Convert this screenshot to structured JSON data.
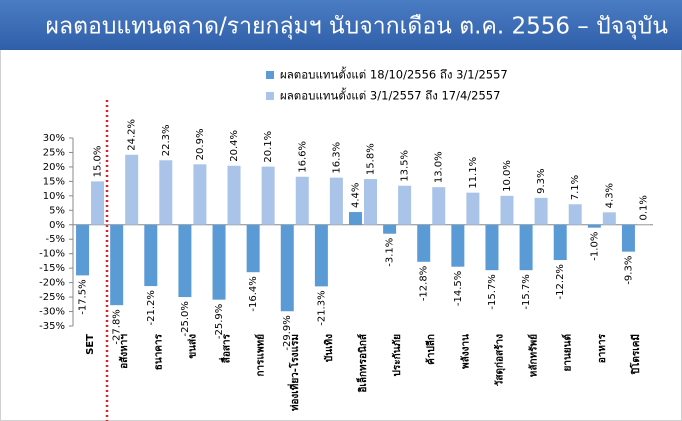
{
  "chart_data": {
    "type": "bar",
    "title": "ผลตอบแทนตลาด/รายกลุ่มฯ นับจากเดือน ต.ค. 2556 – ปัจจุบัน",
    "categories": [
      "SET",
      "อสังหาฯ",
      "ธนาคาร",
      "ขนส่ง",
      "สื่อสาร",
      "การแพทย์",
      "ท่องเที่ยว-โรงแรม",
      "บันเทิง",
      "อิเล็กทรอนิกส์",
      "ประกันภัย",
      "ค้าปลีก",
      "พลังงาน",
      "วัสดุก่อสร้าง",
      "หลักทรัพย์",
      "ยานยนต์",
      "อาหาร",
      "ปิโตรเคมี"
    ],
    "series": [
      {
        "name": "ผลตอบแทนตั้งแต่ 18/10/2556 ถึง 3/1/2557",
        "color": "#5b9bd5",
        "values": [
          -17.5,
          -27.8,
          -21.2,
          -25.0,
          -25.9,
          -16.4,
          -29.9,
          -21.3,
          4.4,
          -3.1,
          -12.8,
          -14.5,
          -15.7,
          -15.7,
          -12.2,
          -1.0,
          -9.3
        ],
        "value_labels": [
          "-17.5%",
          "-27.8%",
          "-21.2%",
          "-25.0%",
          "-25.9%",
          "-16.4%",
          "-29.9%",
          "-21.3%",
          "4.4%",
          "-3.1%",
          "-12.8%",
          "-14.5%",
          "-15.7%",
          "-15.7%",
          "-12.2%",
          "-1.0%",
          "-9.3%"
        ]
      },
      {
        "name": "ผลตอบแทนตั้งแต่ 3/1/2557 ถึง 17/4/2557",
        "color": "#a9c4e8",
        "values": [
          15.0,
          24.2,
          22.3,
          20.9,
          20.4,
          20.1,
          16.6,
          16.3,
          15.8,
          13.5,
          13.0,
          11.1,
          10.0,
          9.3,
          7.1,
          4.3,
          0.1
        ],
        "value_labels": [
          "15.0%",
          "24.2%",
          "22.3%",
          "20.9%",
          "20.4%",
          "20.1%",
          "16.6%",
          "16.3%",
          "15.8%",
          "13.5%",
          "13.0%",
          "11.1%",
          "10.0%",
          "9.3%",
          "7.1%",
          "4.3%",
          "0.1%"
        ]
      }
    ],
    "ylim": [
      -35,
      30
    ],
    "yticks": [
      {
        "value": -35,
        "label": "-35%"
      },
      {
        "value": -30,
        "label": "-30%"
      },
      {
        "value": -25,
        "label": "-25%"
      },
      {
        "value": -20,
        "label": "-20%"
      },
      {
        "value": -15,
        "label": "-15%"
      },
      {
        "value": -10,
        "label": "-10%"
      },
      {
        "value": -5,
        "label": "-5%"
      },
      {
        "value": 0,
        "label": "0%"
      },
      {
        "value": 5,
        "label": "5%"
      },
      {
        "value": 10,
        "label": "10%"
      },
      {
        "value": 15,
        "label": "15%"
      },
      {
        "value": 20,
        "label": "20%"
      },
      {
        "value": 25,
        "label": "25%"
      },
      {
        "value": 30,
        "label": "30%"
      }
    ],
    "grid": false
  }
}
